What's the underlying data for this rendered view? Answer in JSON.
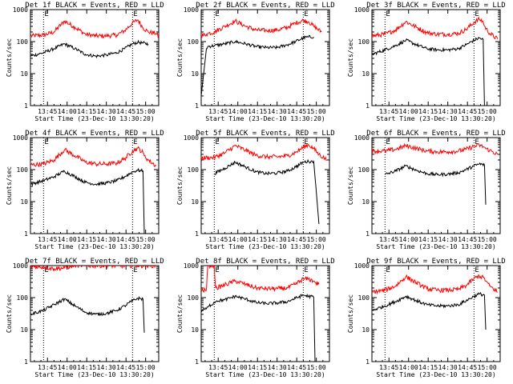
{
  "figure": {
    "xlabel": "Start Time (23-Dec-10 13:30:20)",
    "ylabel": "Counts/sec",
    "x_ticks": [
      "13:45",
      "14:00",
      "14:15",
      "14:30",
      "14:45",
      "15:00"
    ],
    "y_ticks": [
      "1",
      "10",
      "100",
      "1000"
    ],
    "marker_labels": [
      "E",
      "E"
    ]
  },
  "colors": {
    "events": "#000000",
    "lld": "#ff0000",
    "axes": "#000000"
  },
  "chart_data": [
    {
      "type": "line",
      "title": "Det 1f BLACK = Events, RED = LLD",
      "xlabel": "Start Time (23-Dec-10 13:30:20)",
      "ylabel": "Counts/sec",
      "x_range": [
        "13:32",
        "15:10"
      ],
      "ylim": [
        1,
        1000
      ],
      "y_scale": "log",
      "grid": false,
      "marker_lines": [
        "13:42",
        "14:50"
      ],
      "x_minutes": [
        0,
        10,
        18,
        26,
        34,
        42,
        50,
        58,
        66,
        72,
        78,
        82,
        86,
        90,
        96,
        100
      ],
      "series": [
        {
          "name": "LLD",
          "values": [
            150,
            160,
            200,
            440,
            280,
            170,
            150,
            150,
            160,
            220,
            380,
            480,
            270,
            200,
            180,
            110
          ]
        },
        {
          "name": "Events",
          "values": [
            35,
            45,
            60,
            85,
            60,
            40,
            35,
            38,
            45,
            60,
            85,
            95,
            90,
            85,
            null,
            null
          ]
        }
      ]
    },
    {
      "type": "line",
      "title": "Det 2f BLACK = Events, RED = LLD",
      "xlabel": "Start Time (23-Dec-10 13:30:20)",
      "ylabel": "Counts/sec",
      "x_range": [
        "13:32",
        "15:10"
      ],
      "ylim": [
        1,
        1000
      ],
      "y_scale": "log",
      "grid": false,
      "marker_lines": [
        "13:42",
        "14:50"
      ],
      "x_minutes": [
        0,
        4,
        5,
        10,
        18,
        26,
        34,
        42,
        50,
        58,
        66,
        72,
        78,
        82,
        86,
        92
      ],
      "series": [
        {
          "name": "LLD",
          "values": [
            150,
            170,
            180,
            200,
            300,
            440,
            300,
            230,
            220,
            230,
            280,
            380,
            460,
            420,
            300,
            200
          ]
        },
        {
          "name": "Events",
          "values": [
            2,
            60,
            70,
            75,
            85,
            100,
            85,
            70,
            65,
            65,
            80,
            100,
            130,
            140,
            140,
            null
          ]
        }
      ]
    },
    {
      "type": "line",
      "title": "Det 3f BLACK = Events, RED = LLD",
      "xlabel": "Start Time (23-Dec-10 13:30:20)",
      "ylabel": "Counts/sec",
      "x_range": [
        "13:32",
        "15:10"
      ],
      "ylim": [
        1,
        1000
      ],
      "y_scale": "log",
      "grid": false,
      "marker_lines": [
        "13:42",
        "14:50"
      ],
      "x_minutes": [
        0,
        10,
        18,
        26,
        34,
        42,
        50,
        58,
        66,
        72,
        78,
        82,
        85,
        86,
        90,
        96
      ],
      "series": [
        {
          "name": "LLD",
          "values": [
            150,
            170,
            230,
            420,
            280,
            190,
            170,
            170,
            180,
            240,
            400,
            500,
            420,
            300,
            180,
            120
          ]
        },
        {
          "name": "Events",
          "values": [
            40,
            55,
            75,
            110,
            80,
            60,
            55,
            55,
            60,
            80,
            110,
            130,
            115,
            1,
            null,
            null
          ]
        }
      ]
    },
    {
      "type": "line",
      "title": "Det 4f BLACK = Events, RED = LLD",
      "xlabel": "Start Time (23-Dec-10 13:30:20)",
      "ylabel": "Counts/sec",
      "x_range": [
        "13:32",
        "15:10"
      ],
      "ylim": [
        1,
        1000
      ],
      "y_scale": "log",
      "grid": false,
      "marker_lines": [
        "13:42",
        "14:50"
      ],
      "x_minutes": [
        0,
        10,
        18,
        26,
        34,
        42,
        50,
        58,
        66,
        72,
        78,
        82,
        86,
        87,
        90,
        96
      ],
      "series": [
        {
          "name": "LLD",
          "values": [
            140,
            150,
            200,
            420,
            270,
            170,
            150,
            150,
            160,
            220,
            380,
            470,
            340,
            270,
            200,
            130
          ]
        },
        {
          "name": "Events",
          "values": [
            35,
            45,
            60,
            90,
            60,
            40,
            35,
            38,
            45,
            60,
            85,
            95,
            90,
            1,
            null,
            null
          ]
        }
      ]
    },
    {
      "type": "line",
      "title": "Det 5f BLACK = Events, RED = LLD",
      "xlabel": "Start Time (23-Dec-10 13:30:20)",
      "ylabel": "Counts/sec",
      "x_range": [
        "13:32",
        "15:10"
      ],
      "ylim": [
        1,
        1000
      ],
      "y_scale": "log",
      "grid": false,
      "marker_lines": [
        "13:42",
        "14:50"
      ],
      "x_minutes": [
        0,
        10,
        18,
        26,
        34,
        42,
        50,
        58,
        66,
        72,
        78,
        82,
        86,
        90,
        96
      ],
      "series": [
        {
          "name": "LLD",
          "values": [
            230,
            240,
            330,
            560,
            400,
            280,
            250,
            250,
            270,
            340,
            500,
            600,
            450,
            300,
            200
          ]
        },
        {
          "name": "Events",
          "values": [
            null,
            75,
            110,
            170,
            120,
            85,
            75,
            78,
            90,
            120,
            170,
            180,
            180,
            2,
            null
          ]
        }
      ]
    },
    {
      "type": "line",
      "title": "Det 6f BLACK = Events, RED = LLD",
      "xlabel": "Start Time (23-Dec-10 13:30:20)",
      "ylabel": "Counts/sec",
      "x_range": [
        "13:32",
        "15:10"
      ],
      "ylim": [
        1,
        1000
      ],
      "y_scale": "log",
      "grid": false,
      "marker_lines": [
        "13:42",
        "14:50"
      ],
      "x_minutes": [
        0,
        10,
        18,
        26,
        34,
        42,
        50,
        58,
        66,
        72,
        78,
        82,
        86,
        87,
        90,
        96
      ],
      "series": [
        {
          "name": "LLD",
          "values": [
            380,
            380,
            430,
            560,
            460,
            380,
            360,
            360,
            380,
            430,
            530,
            580,
            500,
            450,
            400,
            300
          ]
        },
        {
          "name": "Events",
          "values": [
            null,
            70,
            90,
            130,
            95,
            75,
            70,
            72,
            80,
            100,
            130,
            150,
            140,
            8,
            null,
            null
          ]
        }
      ]
    },
    {
      "type": "line",
      "title": "Det 7f BLACK = Events, RED = LLD",
      "xlabel": "Start Time (23-Dec-10 13:30:20)",
      "ylabel": "Counts/sec",
      "x_range": [
        "13:32",
        "15:10"
      ],
      "ylim": [
        1,
        1000
      ],
      "y_scale": "log",
      "grid": false,
      "marker_lines": [
        "13:42",
        "14:50"
      ],
      "x_minutes": [
        0,
        10,
        18,
        26,
        34,
        42,
        50,
        58,
        66,
        72,
        78,
        82,
        86,
        87,
        90,
        96
      ],
      "series": [
        {
          "name": "LLD",
          "values": [
            950,
            900,
            800,
            850,
            1000,
            1000,
            1000,
            1000,
            1000,
            1000,
            1000,
            1000,
            1000,
            1000,
            1000,
            1000
          ]
        },
        {
          "name": "Events",
          "values": [
            30,
            40,
            60,
            90,
            55,
            35,
            30,
            32,
            40,
            55,
            80,
            95,
            90,
            8,
            null,
            null
          ]
        }
      ]
    },
    {
      "type": "line",
      "title": "Det 8f BLACK = Events, RED = LLD",
      "xlabel": "Start Time (23-Dec-10 13:30:20)",
      "ylabel": "Counts/sec",
      "x_range": [
        "13:32",
        "15:10"
      ],
      "ylim": [
        1,
        1000
      ],
      "y_scale": "log",
      "grid": false,
      "marker_lines": [
        "13:42",
        "14:50"
      ],
      "x_minutes": [
        0,
        4,
        5,
        6,
        10,
        11,
        12,
        18,
        26,
        34,
        42,
        50,
        58,
        66,
        72,
        78,
        82,
        86,
        87,
        90
      ],
      "series": [
        {
          "name": "LLD",
          "values": [
            170,
            170,
            1000,
            1000,
            1000,
            200,
            200,
            250,
            330,
            260,
            200,
            190,
            190,
            200,
            260,
            380,
            380,
            330,
            300,
            260
          ]
        },
        {
          "name": "Events",
          "values": [
            40,
            45,
            50,
            55,
            70,
            75,
            80,
            85,
            110,
            90,
            70,
            65,
            68,
            75,
            95,
            120,
            110,
            105,
            1,
            null
          ]
        }
      ]
    },
    {
      "type": "line",
      "title": "Det 9f BLACK = Events, RED = LLD",
      "xlabel": "Start Time (23-Dec-10 13:30:20)",
      "ylabel": "Counts/sec",
      "x_range": [
        "13:32",
        "15:10"
      ],
      "ylim": [
        1,
        1000
      ],
      "y_scale": "log",
      "grid": false,
      "marker_lines": [
        "13:42",
        "14:50"
      ],
      "x_minutes": [
        0,
        10,
        18,
        26,
        34,
        42,
        50,
        58,
        66,
        72,
        78,
        82,
        86,
        87,
        90,
        96
      ],
      "series": [
        {
          "name": "LLD",
          "values": [
            150,
            170,
            230,
            450,
            290,
            190,
            170,
            170,
            180,
            240,
            390,
            480,
            400,
            330,
            230,
            150
          ]
        },
        {
          "name": "Events",
          "values": [
            40,
            55,
            75,
            110,
            80,
            60,
            55,
            55,
            60,
            80,
            110,
            130,
            120,
            10,
            null,
            null
          ]
        }
      ]
    }
  ]
}
